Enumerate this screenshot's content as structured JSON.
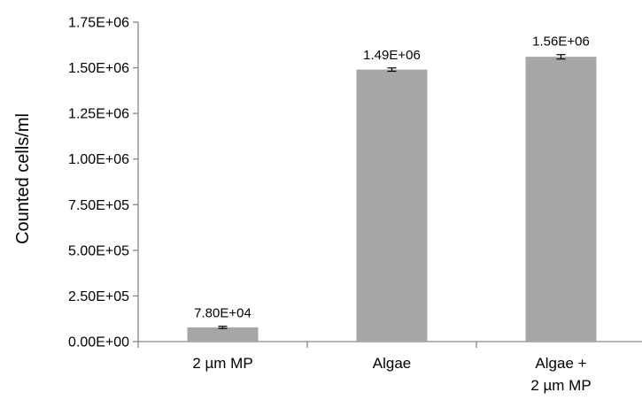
{
  "chart_data": {
    "type": "bar",
    "categories": [
      [
        "2 µm MP"
      ],
      [
        "Algae"
      ],
      [
        "Algae +",
        "2 µm MP"
      ]
    ],
    "values": [
      78000,
      1490000,
      1560000
    ],
    "errors": [
      6000,
      9000,
      12000
    ],
    "data_labels": [
      "7.80E+04",
      "1.49E+06",
      "1.56E+06"
    ],
    "ylabel": "Counted cells/ml",
    "xlabel": "",
    "title": "",
    "ylim": [
      0,
      1750000
    ],
    "yticks": [
      0,
      250000,
      500000,
      750000,
      1000000,
      1250000,
      1500000,
      1750000
    ],
    "ytick_labels": [
      "0.00E+00",
      "2.50E+05",
      "5.00E+05",
      "7.50E+05",
      "1.00E+06",
      "1.25E+06",
      "1.50E+06",
      "1.75E+06"
    ],
    "grid": false,
    "legend": "none",
    "bar_color": "#a6a6a6",
    "axis_color": "#868686"
  }
}
